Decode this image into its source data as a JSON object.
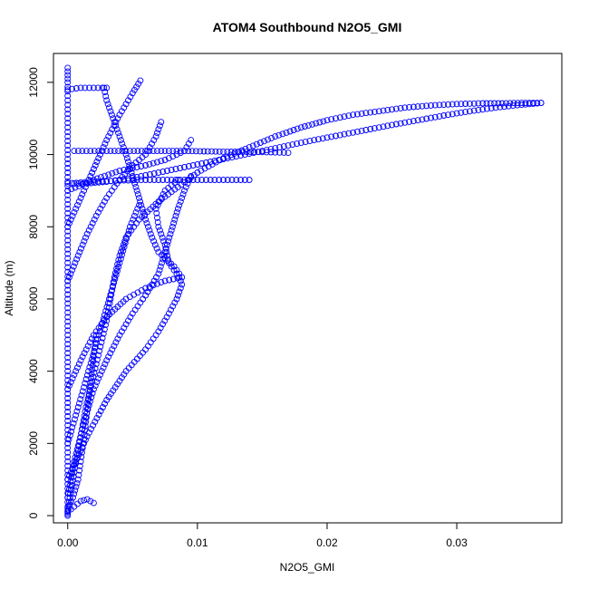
{
  "chart_data": {
    "type": "scatter",
    "title": "ATOM4 Southbound N2O5_GMI",
    "xlabel": "N2O5_GMI",
    "ylabel": "Altitude (m)",
    "xlim": [
      -0.0011,
      0.0381
    ],
    "ylim": [
      -200,
      12800
    ],
    "x_ticks": [
      0.0,
      0.01,
      0.02,
      0.03
    ],
    "x_tick_labels": [
      "0.00",
      "0.01",
      "0.02",
      "0.03"
    ],
    "y_ticks": [
      0,
      2000,
      4000,
      6000,
      8000,
      10000,
      12000
    ],
    "y_tick_labels": [
      "0",
      "2000",
      "4000",
      "6000",
      "8000",
      "10000",
      "12000"
    ],
    "grid": false,
    "legend": "none",
    "marker": "open-circle",
    "color": "#0000ff",
    "series": [
      {
        "points": [
          [
            0.0,
            50
          ],
          [
            0.0002,
            600
          ],
          [
            0.0005,
            1200
          ],
          [
            0.0008,
            1800
          ],
          [
            0.0011,
            2400
          ],
          [
            0.0014,
            3000
          ],
          [
            0.0018,
            3600
          ],
          [
            0.0022,
            4200
          ],
          [
            0.0026,
            4800
          ],
          [
            0.003,
            5400
          ],
          [
            0.0033,
            6000
          ],
          [
            0.0036,
            6600
          ],
          [
            0.004,
            7200
          ],
          [
            0.0045,
            7700
          ],
          [
            0.0055,
            8200
          ],
          [
            0.007,
            8700
          ],
          [
            0.0085,
            9100
          ],
          [
            0.01,
            9500
          ],
          [
            0.012,
            9900
          ],
          [
            0.014,
            10200
          ],
          [
            0.016,
            10500
          ],
          [
            0.018,
            10750
          ],
          [
            0.02,
            10950
          ],
          [
            0.022,
            11100
          ],
          [
            0.024,
            11200
          ],
          [
            0.026,
            11300
          ],
          [
            0.028,
            11360
          ],
          [
            0.03,
            11400
          ],
          [
            0.032,
            11420
          ],
          [
            0.0335,
            11420
          ],
          [
            0.035,
            11430
          ],
          [
            0.0365,
            11430
          ]
        ]
      },
      {
        "points": [
          [
            0.0365,
            11430
          ],
          [
            0.035,
            11380
          ],
          [
            0.033,
            11300
          ],
          [
            0.031,
            11200
          ],
          [
            0.029,
            11080
          ],
          [
            0.027,
            10950
          ],
          [
            0.025,
            10820
          ],
          [
            0.023,
            10680
          ],
          [
            0.021,
            10540
          ],
          [
            0.019,
            10400
          ],
          [
            0.017,
            10250
          ],
          [
            0.015,
            10100
          ],
          [
            0.013,
            9950
          ],
          [
            0.011,
            9800
          ],
          [
            0.009,
            9650
          ],
          [
            0.007,
            9500
          ],
          [
            0.005,
            9350
          ],
          [
            0.003,
            9250
          ],
          [
            0.0015,
            9200
          ],
          [
            0.0005,
            9200
          ]
        ]
      },
      {
        "points": [
          [
            0.0,
            9200
          ],
          [
            0.002,
            9250
          ],
          [
            0.004,
            9280
          ],
          [
            0.006,
            9300
          ],
          [
            0.008,
            9300
          ],
          [
            0.01,
            9300
          ],
          [
            0.012,
            9300
          ],
          [
            0.014,
            9300
          ]
        ]
      },
      {
        "points": [
          [
            0.0005,
            10100
          ],
          [
            0.003,
            10100
          ],
          [
            0.006,
            10100
          ],
          [
            0.009,
            10100
          ],
          [
            0.012,
            10080
          ],
          [
            0.015,
            10070
          ],
          [
            0.017,
            10050
          ]
        ]
      },
      {
        "points": [
          [
            0.0,
            1000
          ],
          [
            0.0015,
            2200
          ],
          [
            0.003,
            3200
          ],
          [
            0.0045,
            4000
          ],
          [
            0.006,
            4600
          ],
          [
            0.007,
            5100
          ],
          [
            0.0078,
            5600
          ],
          [
            0.0084,
            6000
          ],
          [
            0.0088,
            6400
          ],
          [
            0.0086,
            6600
          ],
          [
            0.0078,
            7000
          ],
          [
            0.0075,
            7500
          ],
          [
            0.007,
            8000
          ],
          [
            0.0068,
            8500
          ],
          [
            0.0075,
            9000
          ],
          [
            0.0085,
            9300
          ]
        ]
      },
      {
        "points": [
          [
            0.0,
            3500
          ],
          [
            0.001,
            4300
          ],
          [
            0.002,
            5000
          ],
          [
            0.003,
            5500
          ],
          [
            0.0045,
            6000
          ],
          [
            0.006,
            6300
          ],
          [
            0.0075,
            6500
          ],
          [
            0.0088,
            6600
          ],
          [
            0.0082,
            6900
          ],
          [
            0.007,
            7300
          ],
          [
            0.0065,
            7700
          ],
          [
            0.006,
            8200
          ],
          [
            0.0055,
            8800
          ],
          [
            0.005,
            9400
          ],
          [
            0.0045,
            10000
          ],
          [
            0.004,
            10500
          ],
          [
            0.0035,
            11000
          ],
          [
            0.003,
            11500
          ],
          [
            0.0028,
            11850
          ]
        ]
      },
      {
        "points": [
          [
            0.0,
            6500
          ],
          [
            0.0008,
            7200
          ],
          [
            0.0015,
            7800
          ],
          [
            0.0022,
            8300
          ],
          [
            0.003,
            8800
          ],
          [
            0.004,
            9300
          ],
          [
            0.005,
            9700
          ],
          [
            0.006,
            10000
          ],
          [
            0.0068,
            10500
          ],
          [
            0.0072,
            10900
          ]
        ]
      },
      {
        "points": [
          [
            0.0,
            8000
          ],
          [
            0.001,
            8800
          ],
          [
            0.002,
            9600
          ],
          [
            0.003,
            10400
          ],
          [
            0.004,
            11100
          ],
          [
            0.005,
            11700
          ],
          [
            0.0056,
            12050
          ]
        ]
      },
      {
        "points": [
          [
            0.0,
            9000
          ],
          [
            0.002,
            9300
          ],
          [
            0.004,
            9550
          ],
          [
            0.006,
            9700
          ],
          [
            0.0075,
            9850
          ],
          [
            0.009,
            10100
          ],
          [
            0.0095,
            10400
          ]
        ]
      },
      {
        "points": [
          [
            0.0,
            500
          ],
          [
            0.0005,
            1500
          ],
          [
            0.0012,
            2500
          ],
          [
            0.002,
            3500
          ],
          [
            0.003,
            4300
          ],
          [
            0.004,
            5000
          ],
          [
            0.005,
            5600
          ],
          [
            0.006,
            6100
          ],
          [
            0.007,
            6700
          ],
          [
            0.0075,
            7300
          ],
          [
            0.008,
            7900
          ],
          [
            0.0085,
            8500
          ],
          [
            0.009,
            9000
          ],
          [
            0.0095,
            9400
          ]
        ]
      },
      {
        "points": [
          [
            0.0,
            100
          ],
          [
            0.0005,
            250
          ],
          [
            0.001,
            400
          ],
          [
            0.0015,
            450
          ],
          [
            0.002,
            350
          ]
        ]
      },
      {
        "points": [
          [
            0.0,
            200
          ],
          [
            0.0004,
            500
          ],
          [
            0.0008,
            1000
          ],
          [
            0.001,
            1500
          ],
          [
            0.0012,
            2000
          ],
          [
            0.0014,
            2600
          ],
          [
            0.0016,
            3200
          ],
          [
            0.0018,
            3800
          ],
          [
            0.002,
            4400
          ],
          [
            0.0022,
            5000
          ]
        ]
      },
      {
        "points": [
          [
            0.0,
            2000
          ],
          [
            0.0008,
            3000
          ],
          [
            0.0016,
            4000
          ],
          [
            0.0024,
            5000
          ],
          [
            0.0032,
            6000
          ],
          [
            0.004,
            7000
          ],
          [
            0.0048,
            8000
          ],
          [
            0.0055,
            8600
          ]
        ]
      },
      {
        "points": [
          [
            0.0,
            11800
          ],
          [
            0.001,
            11850
          ],
          [
            0.002,
            11850
          ],
          [
            0.003,
            11850
          ]
        ]
      },
      {
        "points": [
          [
            0.0,
            12400
          ],
          [
            0.0,
            12000
          ],
          [
            0.0,
            11500
          ],
          [
            0.0,
            11000
          ],
          [
            0.0,
            10500
          ],
          [
            0.0,
            10000
          ],
          [
            0.0,
            9500
          ],
          [
            0.0,
            9000
          ],
          [
            0.0,
            8500
          ],
          [
            0.0,
            8000
          ],
          [
            0.0,
            7500
          ],
          [
            0.0,
            7000
          ],
          [
            0.0,
            6500
          ],
          [
            0.0,
            6000
          ],
          [
            0.0,
            5500
          ],
          [
            0.0,
            5000
          ],
          [
            0.0,
            4500
          ],
          [
            0.0,
            4000
          ],
          [
            0.0,
            3500
          ],
          [
            0.0,
            3000
          ],
          [
            0.0,
            2500
          ],
          [
            0.0,
            2000
          ],
          [
            0.0,
            1500
          ],
          [
            0.0,
            1000
          ],
          [
            0.0,
            500
          ],
          [
            0.0,
            0
          ]
        ]
      }
    ]
  }
}
